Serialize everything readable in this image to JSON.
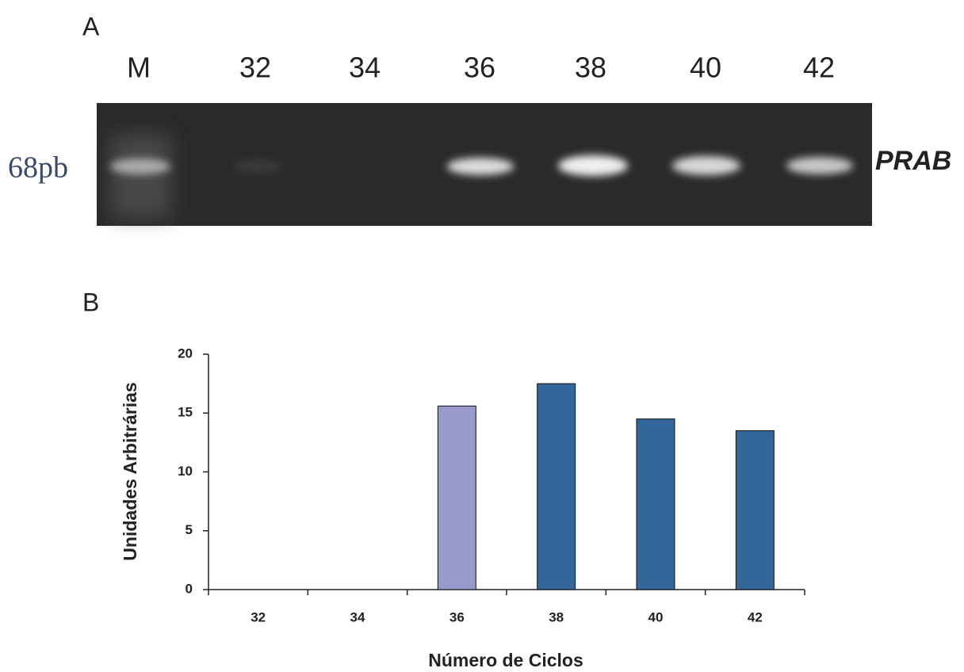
{
  "gel": {
    "panel_label": "A",
    "lanes": [
      "M",
      "32",
      "34",
      "36",
      "38",
      "40",
      "42"
    ],
    "size_label": "68pb",
    "gene_label": "PRAB"
  },
  "chart_data": {
    "type": "bar",
    "panel_label": "B",
    "categories": [
      "32",
      "34",
      "36",
      "38",
      "40",
      "42"
    ],
    "values": [
      0,
      0,
      15.6,
      17.5,
      14.5,
      13.5
    ],
    "colors": [
      "#336699",
      "#336699",
      "#9999cc",
      "#336699",
      "#336699",
      "#336699"
    ],
    "x_label": "Número de Ciclos",
    "y_label": "Unidades Arbitrárias",
    "ylim": [
      0,
      20
    ],
    "yticks": [
      0,
      5,
      10,
      15,
      20
    ],
    "grid": false
  }
}
